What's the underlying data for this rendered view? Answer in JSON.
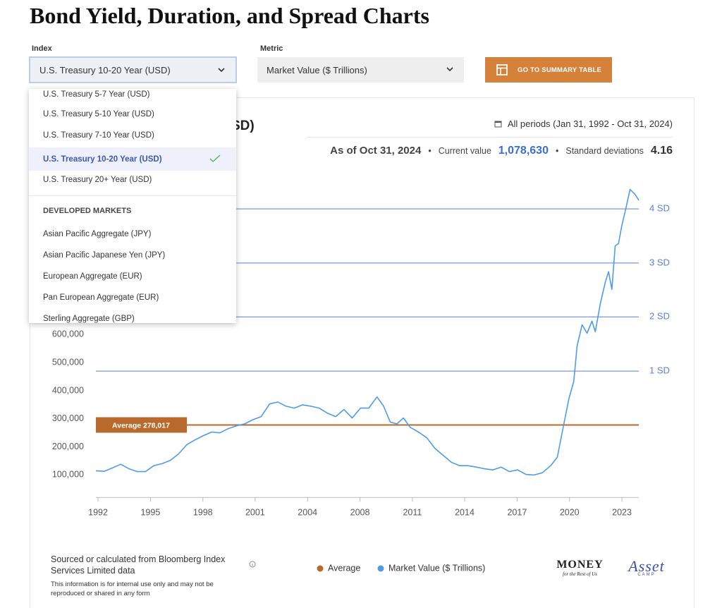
{
  "header": {
    "title": "Bond Yield, Duration, and Spread Charts"
  },
  "controls": {
    "index_label": "Index",
    "index_value": "U.S. Treasury 10-20 Year (USD)",
    "metric_label": "Metric",
    "metric_value": "Market Value ($ Trillions)",
    "summary_button": "GO TO SUMMARY TABLE"
  },
  "dropdown": {
    "items": [
      "U.S. Treasury 5-7 Year (USD)",
      "U.S. Treasury 5-10 Year (USD)",
      "U.S. Treasury 7-10 Year (USD)",
      "U.S. Treasury 10-20 Year (USD)",
      "U.S. Treasury 20+ Year (USD)"
    ],
    "group": "DEVELOPED MARKETS",
    "group_items": [
      "Asian Pacific Aggregate (JPY)",
      "Asian Pacific Japanese Yen (JPY)",
      "European Aggregate (EUR)",
      "Pan European Aggregate (EUR)",
      "Sterling Aggregate (GBP)"
    ]
  },
  "chart_card": {
    "title_fragment": "SD)",
    "period": "All periods (Jan 31, 1992 - Oct 31, 2024)",
    "as_of": "As of Oct 31, 2024",
    "separator": "•",
    "current_value_label": "Current value",
    "current_value": "1,078,630",
    "sd_label": "Standard deviations",
    "sd_value": "4.16"
  },
  "chart_data": {
    "type": "line",
    "x": [
      1992.0,
      1992.5,
      1993.0,
      1993.5,
      1994.0,
      1994.5,
      1995.0,
      1995.5,
      1996.0,
      1996.5,
      1997.0,
      1997.5,
      1998.0,
      1998.5,
      1999.0,
      1999.5,
      2000.0,
      2000.5,
      2001.0,
      2001.5,
      2002.0,
      2002.5,
      2003.0,
      2003.5,
      2004.0,
      2004.5,
      2005.0,
      2005.5,
      2006.0,
      2006.5,
      2007.0,
      2007.5,
      2008.0,
      2008.5,
      2009.0,
      2009.4,
      2009.8,
      2010.2,
      2010.6,
      2011.0,
      2011.5,
      2012.0,
      2012.5,
      2013.0,
      2013.5,
      2014.0,
      2014.5,
      2015.0,
      2015.5,
      2016.0,
      2016.5,
      2017.0,
      2017.5,
      2018.0,
      2018.5,
      2019.0,
      2019.5,
      2019.9,
      2020.3,
      2020.6,
      2020.9,
      2021.1,
      2021.4,
      2021.7,
      2022.0,
      2022.2,
      2022.5,
      2022.8,
      2023.0,
      2023.2,
      2023.4,
      2023.6,
      2023.8,
      2024.0,
      2024.3,
      2024.6,
      2024.83
    ],
    "series": [
      {
        "name": "Market Value ($ Trillions)",
        "color": "#4f9be8",
        "values": [
          115000,
          113000,
          125000,
          138000,
          122000,
          112000,
          112000,
          133000,
          140000,
          152000,
          175000,
          208000,
          225000,
          240000,
          253000,
          250000,
          265000,
          275000,
          282000,
          297000,
          308000,
          353000,
          360000,
          345000,
          338000,
          350000,
          345000,
          338000,
          320000,
          308000,
          333000,
          303000,
          338000,
          338000,
          378000,
          345000,
          288000,
          282000,
          303000,
          270000,
          253000,
          233000,
          195000,
          170000,
          145000,
          133000,
          133000,
          128000,
          122000,
          118000,
          128000,
          112000,
          118000,
          102000,
          100000,
          108000,
          133000,
          163000,
          283000,
          371000,
          434000,
          560000,
          635000,
          605000,
          648000,
          610000,
          710000,
          786000,
          824000,
          761000,
          916000,
          924000,
          987000,
          1037000,
          1117000,
          1100000,
          1078630
        ]
      }
    ],
    "xlim": [
      1992.0,
      2024.83
    ],
    "ylim": [
      20000,
      1150000
    ],
    "xticks": [
      {
        "value": 1992.13,
        "label": "1992"
      },
      {
        "value": 1995.3,
        "label": "1995"
      },
      {
        "value": 1998.47,
        "label": "1998"
      },
      {
        "value": 2001.63,
        "label": "2001"
      },
      {
        "value": 2004.8,
        "label": "2004"
      },
      {
        "value": 2007.97,
        "label": "2008"
      },
      {
        "value": 2011.14,
        "label": "2011"
      },
      {
        "value": 2014.3,
        "label": "2014"
      },
      {
        "value": 2017.47,
        "label": "2017"
      },
      {
        "value": 2020.64,
        "label": "2020"
      },
      {
        "value": 2023.81,
        "label": "2023"
      }
    ],
    "yticks": [
      {
        "value": 100000,
        "label": "100,000"
      },
      {
        "value": 200000,
        "label": "200,000"
      },
      {
        "value": 300000,
        "label": "300,000"
      },
      {
        "value": 400000,
        "label": "400,000"
      },
      {
        "value": 500000,
        "label": "500,000"
      },
      {
        "value": 600000,
        "label": "600,000"
      }
    ],
    "average": {
      "name": "Average",
      "value": 278017,
      "label": "Average 278,017",
      "color": "#b86a2d"
    },
    "sd_lines": [
      {
        "value": 470000,
        "label": "1 SD"
      },
      {
        "value": 663000,
        "label": "2 SD"
      },
      {
        "value": 855000,
        "label": "3 SD"
      },
      {
        "value": 1048000,
        "label": "4 SD"
      }
    ],
    "sd_color": "#5b7fd0"
  },
  "footer": {
    "source": "Sourced or calculated from Bloomberg Index Services Limited data",
    "disclaimer": "This information is for internal use only and may not be reproduced or shared in any form",
    "logo1": "MONEY",
    "logo1_sub": "for the Rest of Us",
    "logo2": "Asset",
    "logo2_sub": "CAMP"
  }
}
